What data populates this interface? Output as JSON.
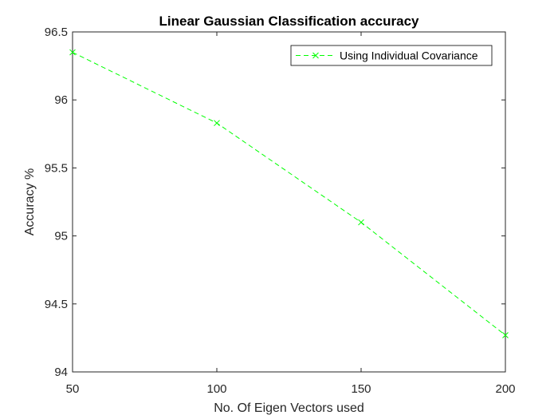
{
  "chart_data": {
    "type": "line",
    "title": "Linear Gaussian Classification accuracy",
    "xlabel": "No. Of Eigen Vectors used",
    "ylabel": "Accuracy %",
    "xlim": [
      50,
      200
    ],
    "ylim": [
      94,
      96.5
    ],
    "xticks": [
      50,
      100,
      150,
      200
    ],
    "xtick_labels": [
      "50",
      "100",
      "150",
      "200"
    ],
    "yticks": [
      94,
      94.5,
      95,
      95.5,
      96,
      96.5
    ],
    "ytick_labels": [
      "94",
      "94.5",
      "95",
      "95.5",
      "96",
      "96.5"
    ],
    "grid": false,
    "legend_position": "top-right",
    "series": [
      {
        "name": "Using Individual Covariance",
        "x": [
          50,
          100,
          150,
          200
        ],
        "y": [
          96.35,
          95.83,
          95.1,
          94.27
        ],
        "color": "#00ff00",
        "line_style": "dashed",
        "marker": "x"
      }
    ]
  }
}
